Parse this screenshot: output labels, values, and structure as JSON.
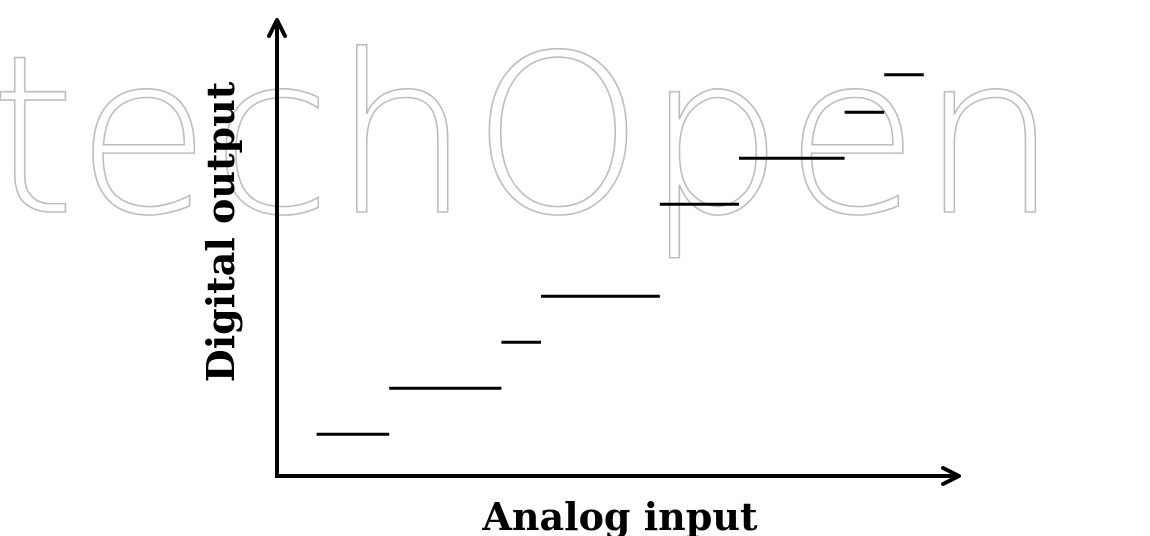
{
  "watermark": {
    "text": "IntechOpen"
  },
  "chart_data": {
    "type": "step",
    "xlabel": "Analog input",
    "ylabel": "Digital output",
    "segments": [
      {
        "x0": 0.06,
        "x1": 0.17,
        "y": 0.1
      },
      {
        "x0": 0.17,
        "x1": 0.34,
        "y": 0.21
      },
      {
        "x0": 0.34,
        "x1": 0.4,
        "y": 0.32
      },
      {
        "x0": 0.4,
        "x1": 0.58,
        "y": 0.43
      },
      {
        "x0": 0.58,
        "x1": 0.7,
        "y": 0.65
      },
      {
        "x0": 0.7,
        "x1": 0.86,
        "y": 0.76
      },
      {
        "x0": 0.86,
        "x1": 0.92,
        "y": 0.87
      },
      {
        "x0": 0.92,
        "x1": 0.98,
        "y": 0.96
      }
    ]
  }
}
